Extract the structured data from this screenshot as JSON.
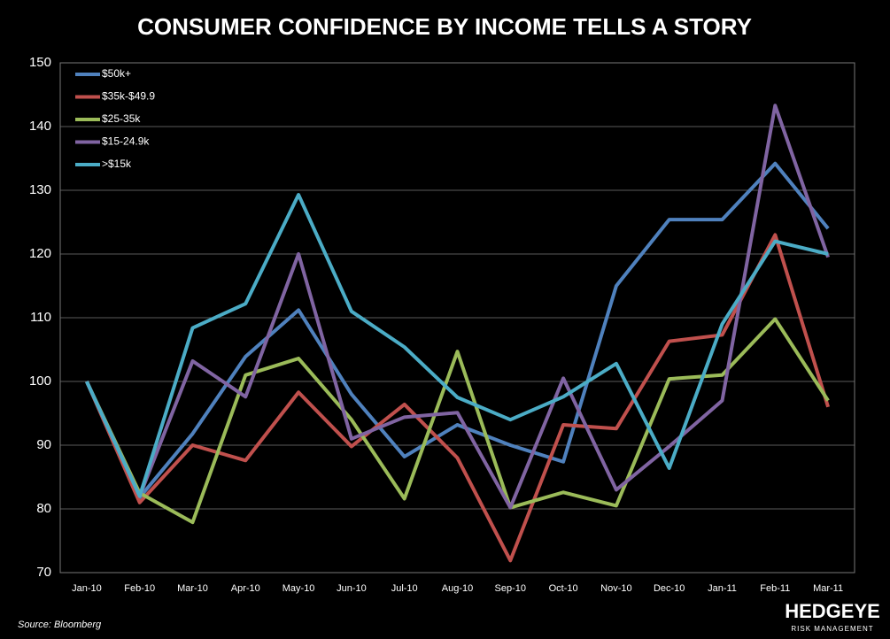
{
  "chart_data": {
    "type": "line",
    "title": "CONSUMER CONFIDENCE BY INCOME TELLS A STORY",
    "source": "Source: Bloomberg",
    "logo": {
      "name": "HEDGEYE",
      "tagline": "RISK MANAGEMENT"
    },
    "categories": [
      "Jan-10",
      "Feb-10",
      "Mar-10",
      "Apr-10",
      "May-10",
      "Jun-10",
      "Jul-10",
      "Aug-10",
      "Sep-10",
      "Oct-10",
      "Nov-10",
      "Dec-10",
      "Jan-11",
      "Feb-11",
      "Mar-11"
    ],
    "series": [
      {
        "name": "$50k+",
        "color": "#4f81bd",
        "values": [
          100,
          81.8,
          91.8,
          103.9,
          111.2,
          98,
          88.2,
          93.2,
          90,
          87.4,
          115,
          125.4,
          125.4,
          134.2,
          124
        ]
      },
      {
        "name": "$35k-$49.9",
        "color": "#c0504d",
        "values": [
          100,
          81,
          90,
          87.6,
          98.3,
          89.8,
          96.4,
          88,
          71.9,
          93.2,
          92.6,
          106.3,
          107.3,
          123,
          96
        ]
      },
      {
        "name": "$25-35k",
        "color": "#9bbb59",
        "values": [
          100,
          82.5,
          77.9,
          101,
          103.6,
          94,
          81.6,
          104.7,
          80.2,
          82.6,
          80.5,
          100.4,
          101,
          109.8,
          97
        ]
      },
      {
        "name": "$15-24.9k",
        "color": "#8064a2",
        "values": [
          100,
          82,
          103.2,
          97.6,
          120,
          91,
          94.4,
          95.1,
          80.2,
          100.5,
          83,
          89.8,
          97,
          143.3,
          119.5
        ]
      },
      {
        "name": ">$15k",
        "color": "#4bacc6",
        "values": [
          100,
          82,
          108.4,
          112.2,
          129.3,
          111,
          105.4,
          97.5,
          94,
          97.6,
          102.8,
          86.4,
          109,
          122,
          120
        ]
      }
    ],
    "ylim": [
      70,
      150
    ],
    "yticks": [
      70,
      80,
      90,
      100,
      110,
      120,
      130,
      140,
      150
    ],
    "grid": true,
    "legend": "top-left"
  }
}
